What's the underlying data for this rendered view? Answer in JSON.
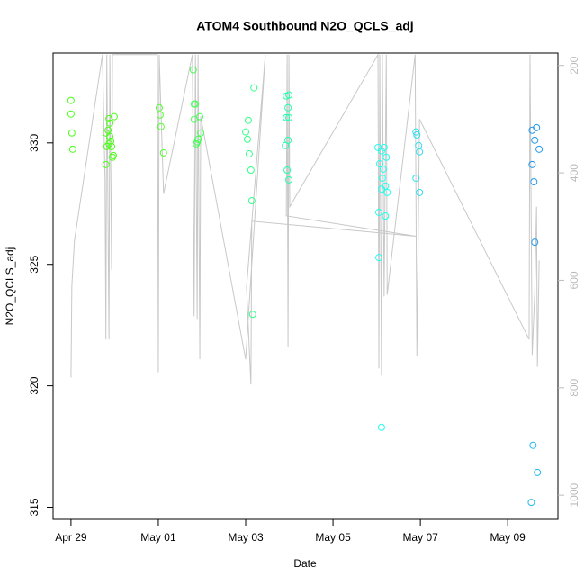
{
  "chart_data": {
    "type": "scatter",
    "title": "ATOM4 Southbound N2O_QCLS_adj",
    "x_label": "Date",
    "y_label": "N2O_QCLS_adj",
    "xlim": [
      -0.41,
      11.15
    ],
    "xticks": [
      {
        "value": 0,
        "label": "Apr 29"
      },
      {
        "value": 2,
        "label": "May 01"
      },
      {
        "value": 4,
        "label": "May 03"
      },
      {
        "value": 6,
        "label": "May 05"
      },
      {
        "value": 8,
        "label": "May 07"
      },
      {
        "value": 10,
        "label": "May 09"
      }
    ],
    "ylim": [
      314.5,
      333.7
    ],
    "yticks": [
      315,
      320,
      325,
      330
    ],
    "y2lim": [
      1045,
      177
    ],
    "y2ticks": [
      200,
      400,
      600,
      800,
      1000
    ],
    "series": [
      {
        "color": "#4dff1a",
        "x": [
          0.0,
          0.0,
          0.02,
          0.04
        ],
        "values": [
          331.75,
          331.19,
          330.41,
          329.74
        ]
      },
      {
        "color": "#4dff1a",
        "x": [
          0.8,
          0.85,
          0.87,
          0.89,
          0.82,
          0.87,
          0.91,
          0.93,
          0.95,
          0.97,
          0.99,
          0.8,
          0.89
        ],
        "values": [
          330.41,
          330.52,
          331.0,
          330.82,
          329.85,
          329.96,
          330.07,
          329.85,
          329.41,
          329.48,
          331.08,
          329.11,
          330.26
        ]
      },
      {
        "color": "#55ff33",
        "x": [
          2.02,
          2.04,
          2.06,
          2.12
        ],
        "values": [
          331.45,
          331.15,
          330.67,
          329.59
        ]
      },
      {
        "color": "#44ff55",
        "x": [
          2.8,
          2.82,
          2.85,
          2.82,
          2.87,
          2.89,
          2.95,
          2.97,
          2.91
        ],
        "values": [
          333.01,
          331.6,
          331.6,
          330.97,
          329.96,
          330.04,
          331.08,
          330.41,
          330.15
        ]
      },
      {
        "color": "#33ff88",
        "x": [
          4.0,
          4.04,
          4.06,
          4.08,
          4.12,
          4.14,
          4.19,
          4.16
        ],
        "values": [
          330.45,
          330.15,
          330.93,
          329.55,
          328.88,
          327.62,
          332.27,
          322.94
        ]
      },
      {
        "color": "#22ffaa",
        "x": [
          4.93,
          4.99,
          4.97,
          4.93,
          4.99,
          4.91,
          4.97,
          4.95,
          4.99
        ],
        "values": [
          331.93,
          331.97,
          331.45,
          331.04,
          331.04,
          329.89,
          330.11,
          328.88,
          328.48
        ]
      },
      {
        "color": "#22ffee",
        "x": [
          7.03,
          7.11,
          7.17,
          7.07,
          7.13,
          7.15,
          7.2,
          7.22,
          7.24,
          7.11,
          7.05,
          7.2,
          7.05,
          7.11
        ],
        "values": [
          329.81,
          329.67,
          329.81,
          329.14,
          328.55,
          328.92,
          328.22,
          329.41,
          327.96,
          328.1,
          327.14,
          326.99,
          325.28,
          318.29
        ]
      },
      {
        "color": "#33ddee",
        "x": [
          7.9,
          7.92,
          7.96,
          7.98,
          7.9,
          7.98
        ],
        "values": [
          330.45,
          330.33,
          329.89,
          329.63,
          328.55,
          327.96
        ]
      },
      {
        "color": "#2299ee",
        "x": [
          10.56,
          10.66,
          10.62,
          10.72,
          10.56,
          10.6,
          10.62
        ],
        "values": [
          330.52,
          330.63,
          330.11,
          329.74,
          329.11,
          328.4,
          325.91
        ]
      },
      {
        "color": "#22bbee",
        "x": [
          10.58,
          10.68,
          10.54
        ],
        "values": [
          317.55,
          316.43,
          315.2
        ]
      },
      {
        "color": "#c8c8c8",
        "axis": "y2",
        "line": true,
        "x": [
          0.0,
          0.02,
          0.08,
          0.72,
          0.78,
          0.8,
          0.82,
          0.87,
          0.89,
          0.93,
          0.95,
          1.98,
          2.0,
          2.02,
          2.12,
          2.78,
          2.82,
          2.85,
          2.89,
          2.91,
          2.95,
          2.97,
          4.0,
          4.45,
          4.02,
          4.12,
          4.14,
          7.9,
          4.93,
          4.95,
          4.97,
          4.99,
          5.01,
          7.03,
          7.05,
          7.07,
          7.11,
          7.13,
          7.17,
          7.22,
          7.24,
          7.88,
          7.92,
          7.98,
          10.49,
          10.51,
          10.56,
          10.62,
          10.66,
          10.68,
          10.72
        ],
        "values": [
          781,
          610,
          526,
          180,
          413,
          710,
          180,
          710,
          180,
          580,
          180,
          180,
          771,
          180,
          439,
          180,
          667,
          180,
          672,
          180,
          747,
          295,
          747,
          180,
          613,
          794,
          490,
          518,
          480,
          180,
          724,
          180,
          463,
          180,
          764,
          180,
          777,
          180,
          630,
          180,
          627,
          180,
          740,
          300,
          710,
          180,
          739,
          622,
          463,
          761,
          563
        ]
      }
    ]
  }
}
